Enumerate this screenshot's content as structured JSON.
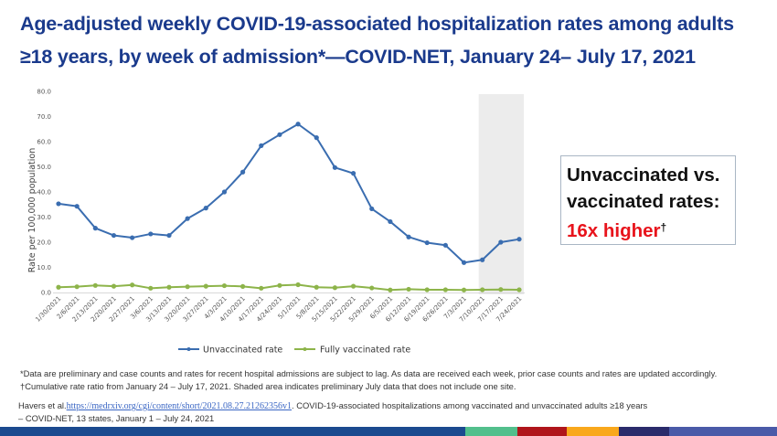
{
  "title": {
    "line1": "Age-adjusted weekly COVID-19-associated hospitalization rates among adults",
    "line2": "≥18 years, by week of admission*—COVID-NET, January 24– July 17, 2021"
  },
  "callout": {
    "line1": "Unvaccinated vs.",
    "line2": "vaccinated rates:",
    "highlight": "16x higher",
    "dagger": "†",
    "highlight_color": "#e8141c"
  },
  "notes": {
    "line1": "*Data are preliminary and case counts and rates for recent hospital admissions are subject to lag. As data are received each week, prior case counts and rates are updated accordingly.",
    "line2": "†Cumulative rate ratio from January 24 – July 17, 2021. Shaded area indicates preliminary July data that does not include one site."
  },
  "citation": {
    "prefix": "Havers et al.",
    "link": "https://medrxiv.org/cgi/content/short/2021.08.27.21262356v1",
    "suffix": ". COVID-19-associated hospitalizations among vaccinated and unvaccinated adults ≥18 years",
    "line2": "– COVID-NET, 13 states, January 1 – July 24, 2021"
  },
  "footer_bar_colors": [
    "#1b4a8f",
    "#52bf8c",
    "#b0151b",
    "#f9a81c",
    "#2a2b6b",
    "#4a5aa8"
  ],
  "chart_data": {
    "type": "line",
    "title": "",
    "xlabel": "",
    "ylabel": "Rate per 100,000 population",
    "ylim": [
      0,
      80
    ],
    "yticks": [
      "0.0",
      "10.0",
      "20.0",
      "30.0",
      "40.0",
      "50.0",
      "60.0",
      "70.0",
      "80.0"
    ],
    "grid": false,
    "legend_position": "bottom",
    "shaded_region": {
      "from": "7/10/2021",
      "to": "7/24/2021",
      "color": "#ececec"
    },
    "categories": [
      "1/30/2021",
      "2/6/2021",
      "2/13/2021",
      "2/20/2021",
      "2/27/2021",
      "3/6/2021",
      "3/13/2021",
      "3/20/2021",
      "3/27/2021",
      "4/3/2021",
      "4/10/2021",
      "4/17/2021",
      "4/24/2021",
      "5/1/2021",
      "5/8/2021",
      "5/15/2021",
      "5/22/2021",
      "5/29/2021",
      "6/5/2021",
      "6/12/2021",
      "6/19/2021",
      "6/26/2021",
      "7/3/2021",
      "7/10/2021",
      "7/17/2021",
      "7/24/2021"
    ],
    "series": [
      {
        "name": "Unvaccinated rate",
        "color": "#3a6db0",
        "values": [
          35.3,
          34.3,
          25.6,
          22.7,
          21.8,
          23.3,
          22.7,
          29.4,
          33.6,
          40.0,
          47.9,
          58.4,
          62.8,
          67.0,
          61.6,
          49.7,
          47.4,
          33.3,
          28.2,
          22.1,
          19.8,
          18.8,
          11.9,
          13.0,
          20.0,
          21.2
        ]
      },
      {
        "name": "Fully vaccinated rate",
        "color": "#8db44a",
        "values": [
          2.1,
          2.3,
          2.8,
          2.5,
          3.0,
          1.7,
          2.1,
          2.3,
          2.5,
          2.7,
          2.4,
          1.7,
          2.8,
          3.1,
          2.1,
          1.9,
          2.5,
          1.8,
          1.0,
          1.3,
          1.1,
          1.1,
          1.0,
          1.1,
          1.2,
          1.1
        ]
      }
    ]
  }
}
